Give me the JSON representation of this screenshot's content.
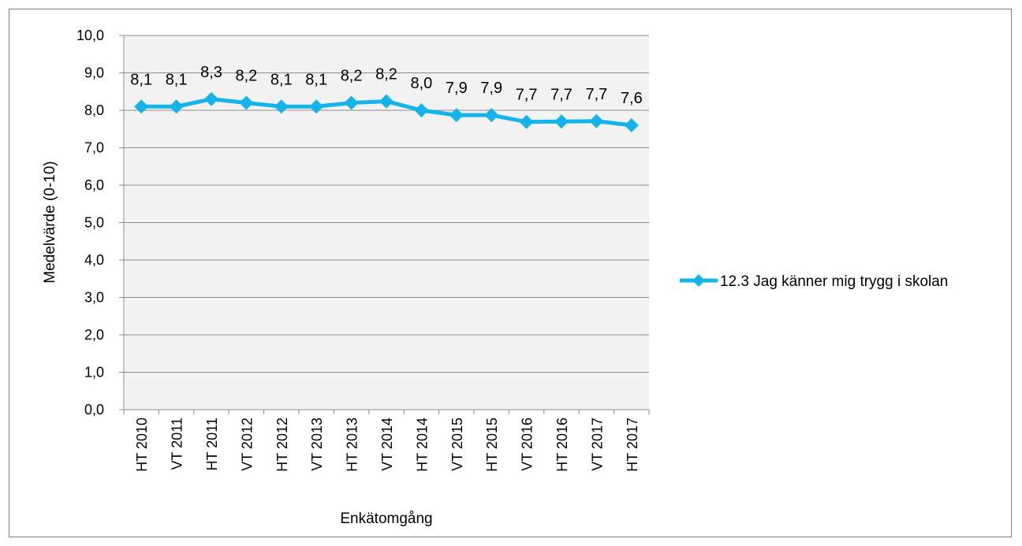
{
  "chart_data": {
    "type": "line",
    "title": "",
    "xlabel": "Enkätomgång",
    "ylabel": "Medelvärde (0-10)",
    "ylim": [
      0,
      10
    ],
    "yticks": [
      "0,0",
      "1,0",
      "2,0",
      "3,0",
      "4,0",
      "5,0",
      "6,0",
      "7,0",
      "8,0",
      "9,0",
      "10,0"
    ],
    "grid": true,
    "legend_position": "right",
    "categories": [
      "HT 2010",
      "VT 2011",
      "HT 2011",
      "VT 2012",
      "HT 2012",
      "VT 2013",
      "HT 2013",
      "VT 2014",
      "HT 2014",
      "VT 2015",
      "HT 2015",
      "VT 2016",
      "HT 2016",
      "VT 2017",
      "HT 2017"
    ],
    "series": [
      {
        "name": "12.3 Jag känner mig trygg i skolan",
        "color": "#14b4ea",
        "values": [
          8.1,
          8.1,
          8.3,
          8.2,
          8.1,
          8.1,
          8.2,
          8.24,
          8.0,
          7.87,
          7.87,
          7.69,
          7.7,
          7.71,
          7.6
        ],
        "labels": [
          "8,1",
          "8,1",
          "8,3",
          "8,2",
          "8,1",
          "8,1",
          "8,2",
          "8,2",
          "8,0",
          "7,9",
          "7,9",
          "7,7",
          "7,7",
          "7,7",
          "7,6"
        ]
      }
    ],
    "plot_background": "#f2f2f2",
    "gridline_color": "#8c8c8c"
  }
}
